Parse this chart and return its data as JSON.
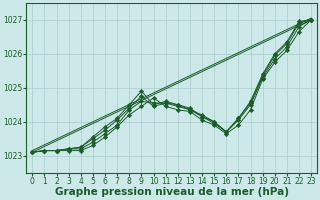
{
  "bg_color": "#cce8e8",
  "grid_color": "#aacccc",
  "line_color": "#1a5c2a",
  "marker_color": "#1a5c2a",
  "xlabel": "Graphe pression niveau de la mer (hPa)",
  "xlabel_fontsize": 7.5,
  "xlabel_bold": true,
  "ylim": [
    1022.5,
    1027.5
  ],
  "xlim": [
    -0.5,
    23.5
  ],
  "yticks": [
    1023,
    1024,
    1025,
    1026,
    1027
  ],
  "xticks": [
    0,
    1,
    2,
    3,
    4,
    5,
    6,
    7,
    8,
    9,
    10,
    11,
    12,
    13,
    14,
    15,
    16,
    17,
    18,
    19,
    20,
    21,
    22,
    23
  ],
  "series": [
    [
      1023.1,
      1023.15,
      1023.15,
      1023.15,
      1023.15,
      1023.3,
      1023.55,
      1023.85,
      1024.2,
      1024.45,
      1024.7,
      1024.45,
      1024.35,
      1024.3,
      1024.05,
      1023.9,
      1023.65,
      1023.9,
      1024.35,
      1025.25,
      1025.75,
      1026.1,
      1026.65,
      1027.0
    ],
    [
      1023.1,
      1023.15,
      1023.15,
      1023.2,
      1023.2,
      1023.4,
      1023.65,
      1023.9,
      1024.35,
      1024.6,
      1024.55,
      1024.55,
      1024.5,
      1024.35,
      1024.2,
      1024.0,
      1023.7,
      1024.05,
      1024.5,
      1025.3,
      1025.85,
      1026.2,
      1026.8,
      1027.0
    ],
    [
      1023.1,
      1023.15,
      1023.15,
      1023.2,
      1023.25,
      1023.5,
      1023.75,
      1024.05,
      1024.4,
      1024.75,
      1024.45,
      1024.55,
      1024.45,
      1024.35,
      1024.15,
      1023.95,
      1023.7,
      1024.1,
      1024.55,
      1025.35,
      1025.95,
      1026.3,
      1026.9,
      1027.0
    ],
    [
      1023.1,
      1023.15,
      1023.15,
      1023.2,
      1023.25,
      1023.55,
      1023.85,
      1024.1,
      1024.5,
      1024.9,
      1024.5,
      1024.6,
      1024.5,
      1024.4,
      1024.15,
      1024.0,
      1023.7,
      1024.1,
      1024.6,
      1025.4,
      1026.0,
      1026.35,
      1026.95,
      1027.0
    ]
  ],
  "straight_line": [
    [
      0,
      1023.1
    ],
    [
      23,
      1027.0
    ]
  ]
}
